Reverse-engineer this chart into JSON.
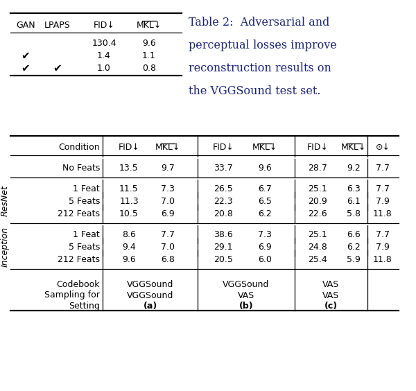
{
  "title_text_lines": [
    "Table 2:  Adversarial and",
    "perceptual losses improve",
    "reconstruction results on",
    "the VGGSound test set."
  ],
  "table1_headers": [
    "GAN",
    "LPAPS",
    "FID↓",
    "MKL↓"
  ],
  "table1_rows": [
    [
      "",
      "",
      "130.4",
      "9.6"
    ],
    [
      "✔",
      "",
      "1.4",
      "1.1"
    ],
    [
      "✔",
      "✔",
      "1.0",
      "0.8"
    ]
  ],
  "table2_rows": [
    [
      "No Feats",
      "13.5",
      "9.7",
      "33.7",
      "9.6",
      "28.7",
      "9.2",
      "7.7"
    ],
    [
      "1 Feat",
      "11.5",
      "7.3",
      "26.5",
      "6.7",
      "25.1",
      "6.3",
      "7.7"
    ],
    [
      "5 Feats",
      "11.3",
      "7.0",
      "22.3",
      "6.5",
      "20.9",
      "6.1",
      "7.9"
    ],
    [
      "212 Feats",
      "10.5",
      "6.9",
      "20.8",
      "6.2",
      "22.6",
      "5.8",
      "11.8"
    ],
    [
      "1 Feat",
      "8.6",
      "7.7",
      "38.6",
      "7.3",
      "25.1",
      "6.6",
      "7.7"
    ],
    [
      "5 Feats",
      "9.4",
      "7.0",
      "29.1",
      "6.9",
      "24.8",
      "6.2",
      "7.9"
    ],
    [
      "212 Feats",
      "9.6",
      "6.8",
      "20.5",
      "6.0",
      "25.4",
      "5.9",
      "11.8"
    ]
  ],
  "resnet_label": "ResNet",
  "inception_label": "Inception",
  "text_color": "#1a237e",
  "bg_color": "#ffffff"
}
